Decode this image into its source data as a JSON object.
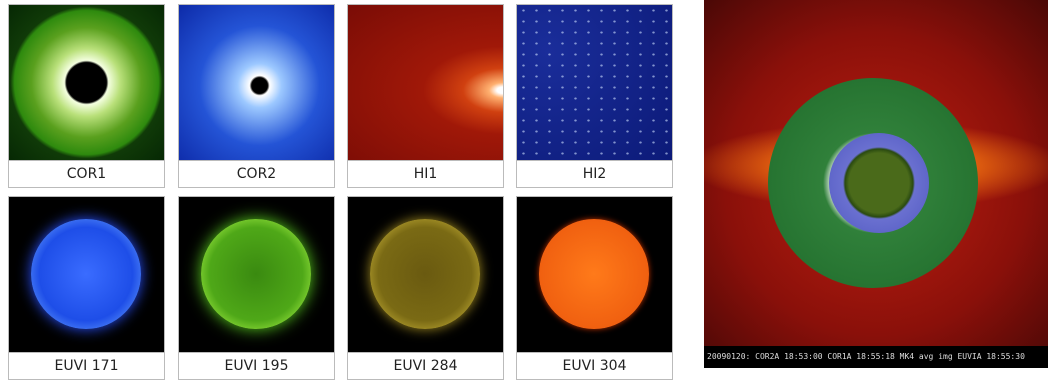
{
  "tiles": [
    {
      "label": "COR1"
    },
    {
      "label": "COR2"
    },
    {
      "label": "HI1"
    },
    {
      "label": "HI2"
    },
    {
      "label": "EUVI 171"
    },
    {
      "label": "EUVI 195"
    },
    {
      "label": "EUVI 284"
    },
    {
      "label": "EUVI 304"
    }
  ],
  "composite": {
    "caption": "20090120: COR2A 18:53:00  COR1A 18:55:18  MK4 avg img  EUVIA 18:55:30"
  }
}
